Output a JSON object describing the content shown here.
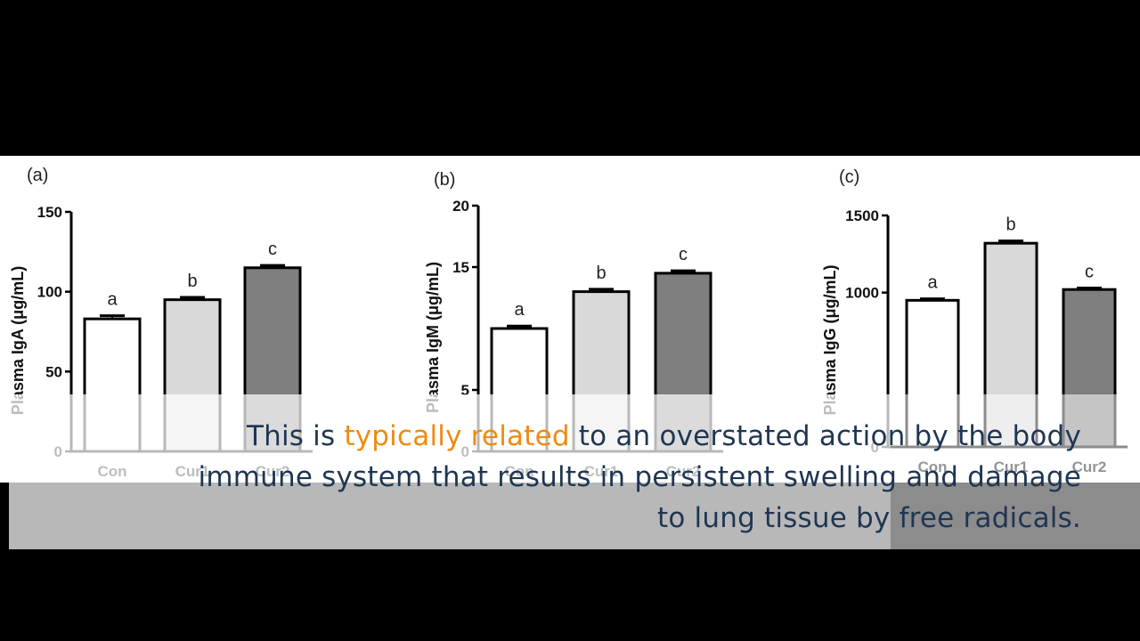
{
  "caption": {
    "part1": "This is ",
    "highlight": "typically related",
    "part2": " to an overstated action by the body immune system that results in persistent swelling and damage to lung tissue by free radicals.",
    "text_color": "#1f3652",
    "highlight_color": "#f08a12"
  },
  "chart_data": [
    {
      "type": "bar",
      "panel_label": "(a)",
      "categories": [
        "Con",
        "Cur1",
        "Cur2"
      ],
      "values": [
        83,
        95,
        115
      ],
      "errors": [
        2,
        1.5,
        1.5
      ],
      "letters": [
        "a",
        "b",
        "c"
      ],
      "bar_colors": [
        "#ffffff",
        "#d9d9d9",
        "#7f7f7f"
      ],
      "ylabel": "Plasma IgA (μg/mL)",
      "ylim": [
        0,
        150
      ],
      "yticks": [
        0,
        50,
        100,
        150
      ],
      "ytick_labels": [
        "0",
        "50",
        "100",
        "150"
      ]
    },
    {
      "type": "bar",
      "panel_label": "(b)",
      "categories": [
        "Con",
        "Cur1",
        "Cur2"
      ],
      "values": [
        10,
        13,
        14.5
      ],
      "errors": [
        0.2,
        0.2,
        0.2
      ],
      "letters": [
        "a",
        "b",
        "c"
      ],
      "bar_colors": [
        "#ffffff",
        "#d9d9d9",
        "#7f7f7f"
      ],
      "ylabel": "Plasma IgM (μg/mL)",
      "ylim": [
        0,
        20
      ],
      "yticks": [
        0,
        5,
        15,
        20
      ],
      "ytick_labels": [
        "0",
        "5",
        "15",
        "20"
      ]
    },
    {
      "type": "bar",
      "panel_label": "(c)",
      "categories": [
        "Con",
        "Cur1",
        "Cur2"
      ],
      "values": [
        950,
        1320,
        1020
      ],
      "errors": [
        10,
        15,
        10
      ],
      "letters": [
        "a",
        "b",
        "c"
      ],
      "bar_colors": [
        "#ffffff",
        "#d9d9d9",
        "#7f7f7f"
      ],
      "ylabel": "Plasma IgG (μg/mL)",
      "ylim": [
        0,
        1500
      ],
      "yticks": [
        0,
        1000,
        1500
      ],
      "ytick_labels": [
        "0",
        "1000",
        "1500"
      ]
    }
  ]
}
